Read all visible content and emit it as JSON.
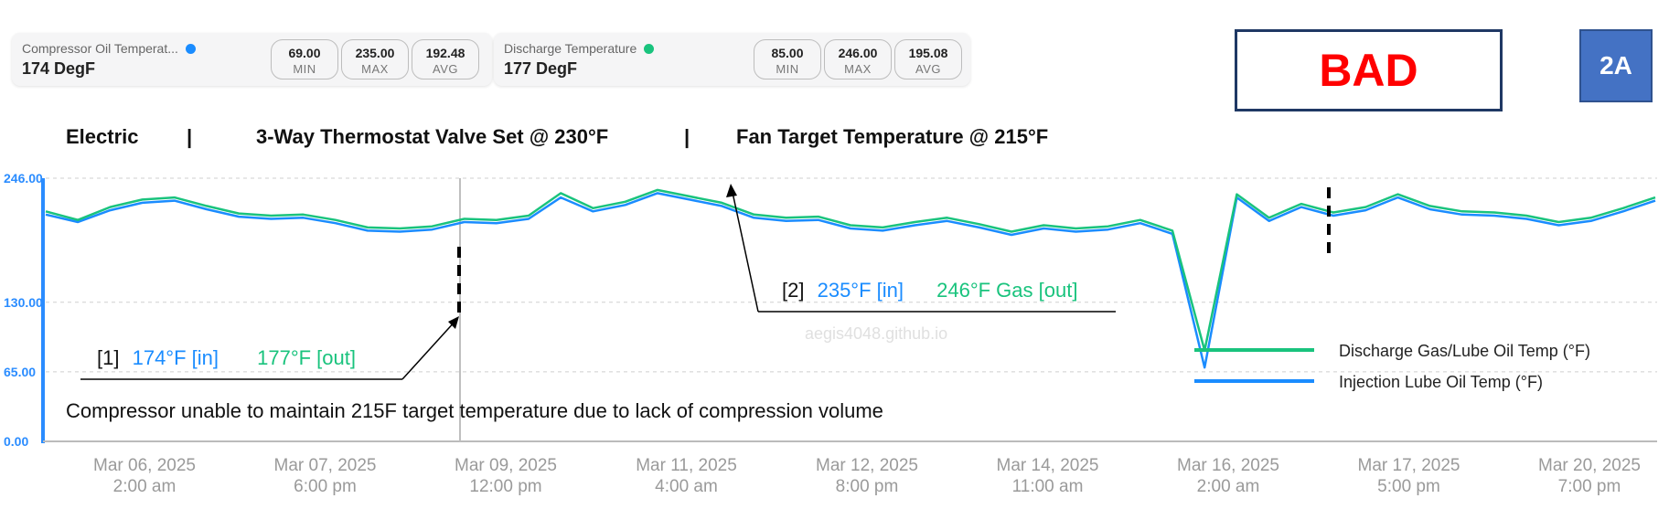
{
  "cards": [
    {
      "label": "Compressor Oil Temperat...",
      "dot_color": "#1a8cff",
      "value": "174 DegF",
      "stats": [
        {
          "value": "69.00",
          "label": "MIN"
        },
        {
          "value": "235.00",
          "label": "MAX"
        },
        {
          "value": "192.48",
          "label": "AVG"
        }
      ]
    },
    {
      "label": "Discharge Temperature",
      "dot_color": "#19c37d",
      "value": "177 DegF",
      "stats": [
        {
          "value": "85.00",
          "label": "MIN"
        },
        {
          "value": "246.00",
          "label": "MAX"
        },
        {
          "value": "195.08",
          "label": "AVG"
        }
      ]
    }
  ],
  "status_label": "BAD",
  "tag_label": "2A",
  "header": {
    "part1": "Electric",
    "sep1": "|",
    "part2": "3-Way Thermostat Valve Set @ 230°F",
    "sep2": "|",
    "part3": "Fan Target Temperature @ 215°F"
  },
  "watermark": "aegis4048.github.io",
  "colors": {
    "discharge": "#19c37d",
    "injection": "#1a8cff",
    "axis": "#2a8cff",
    "status": "#ff0000",
    "tag_bg": "#4472c4"
  },
  "annotations": {
    "a1": {
      "prefix": "[1]",
      "in_text": "174°F [in]",
      "out_text": "177°F [out]"
    },
    "a2": {
      "prefix": "[2]",
      "in_text": "235°F [in]",
      "out_text": "246°F Gas [out]"
    },
    "note": "Compressor unable to maintain 215F target temperature due to lack of compression volume"
  },
  "chart_data": {
    "type": "line",
    "ylim": [
      0,
      246
    ],
    "y_ticks": [
      "246.00",
      "130.00",
      "65.00",
      "0.00"
    ],
    "x_tick_labels": [
      [
        "Mar 06, 2025",
        "2:00 am"
      ],
      [
        "Mar 07, 2025",
        "6:00 pm"
      ],
      [
        "Mar 09, 2025",
        "12:00 pm"
      ],
      [
        "Mar 11, 2025",
        "4:00 am"
      ],
      [
        "Mar 12, 2025",
        "8:00 pm"
      ],
      [
        "Mar 14, 2025",
        "11:00 am"
      ],
      [
        "Mar 16, 2025",
        "2:00 am"
      ],
      [
        "Mar 17, 2025",
        "5:00 pm"
      ],
      [
        "Mar 20, 2025",
        "7:00 pm"
      ]
    ],
    "grid": true,
    "legend_position": "bottom-right",
    "x": [
      0,
      2,
      4,
      6,
      8,
      10,
      12,
      14,
      16,
      18,
      20,
      22,
      24,
      26,
      28,
      30,
      32,
      34,
      36,
      38,
      40,
      42,
      44,
      46,
      48,
      50,
      52,
      54,
      56,
      58,
      60,
      62,
      64,
      66,
      68,
      70,
      72,
      74,
      76,
      78,
      80,
      82,
      84,
      86,
      88,
      90,
      92,
      94,
      96,
      98,
      100
    ],
    "series": [
      {
        "name": "Discharge Gas/Lube Oil Temp (°F)",
        "color": "#19c37d",
        "values": [
          215,
          207,
          219,
          226,
          228,
          220,
          213,
          211,
          212,
          207,
          200,
          199,
          201,
          208,
          207,
          211,
          232,
          218,
          224,
          235,
          229,
          223,
          212,
          209,
          210,
          202,
          200,
          205,
          209,
          203,
          196,
          202,
          199,
          201,
          207,
          197,
          85,
          231,
          209,
          222,
          214,
          219,
          231,
          220,
          215,
          214,
          211,
          205,
          209,
          218,
          228
        ]
      },
      {
        "name": "Injection Lube Oil Temp (°F)",
        "color": "#1a8cff",
        "values": [
          212,
          205,
          216,
          223,
          225,
          217,
          210,
          208,
          209,
          204,
          197,
          196,
          198,
          205,
          204,
          208,
          228,
          215,
          221,
          232,
          226,
          220,
          209,
          206,
          207,
          199,
          197,
          202,
          206,
          200,
          193,
          199,
          196,
          198,
          204,
          194,
          69,
          228,
          206,
          219,
          211,
          216,
          228,
          217,
          212,
          211,
          208,
          202,
          206,
          215,
          225
        ]
      }
    ]
  }
}
